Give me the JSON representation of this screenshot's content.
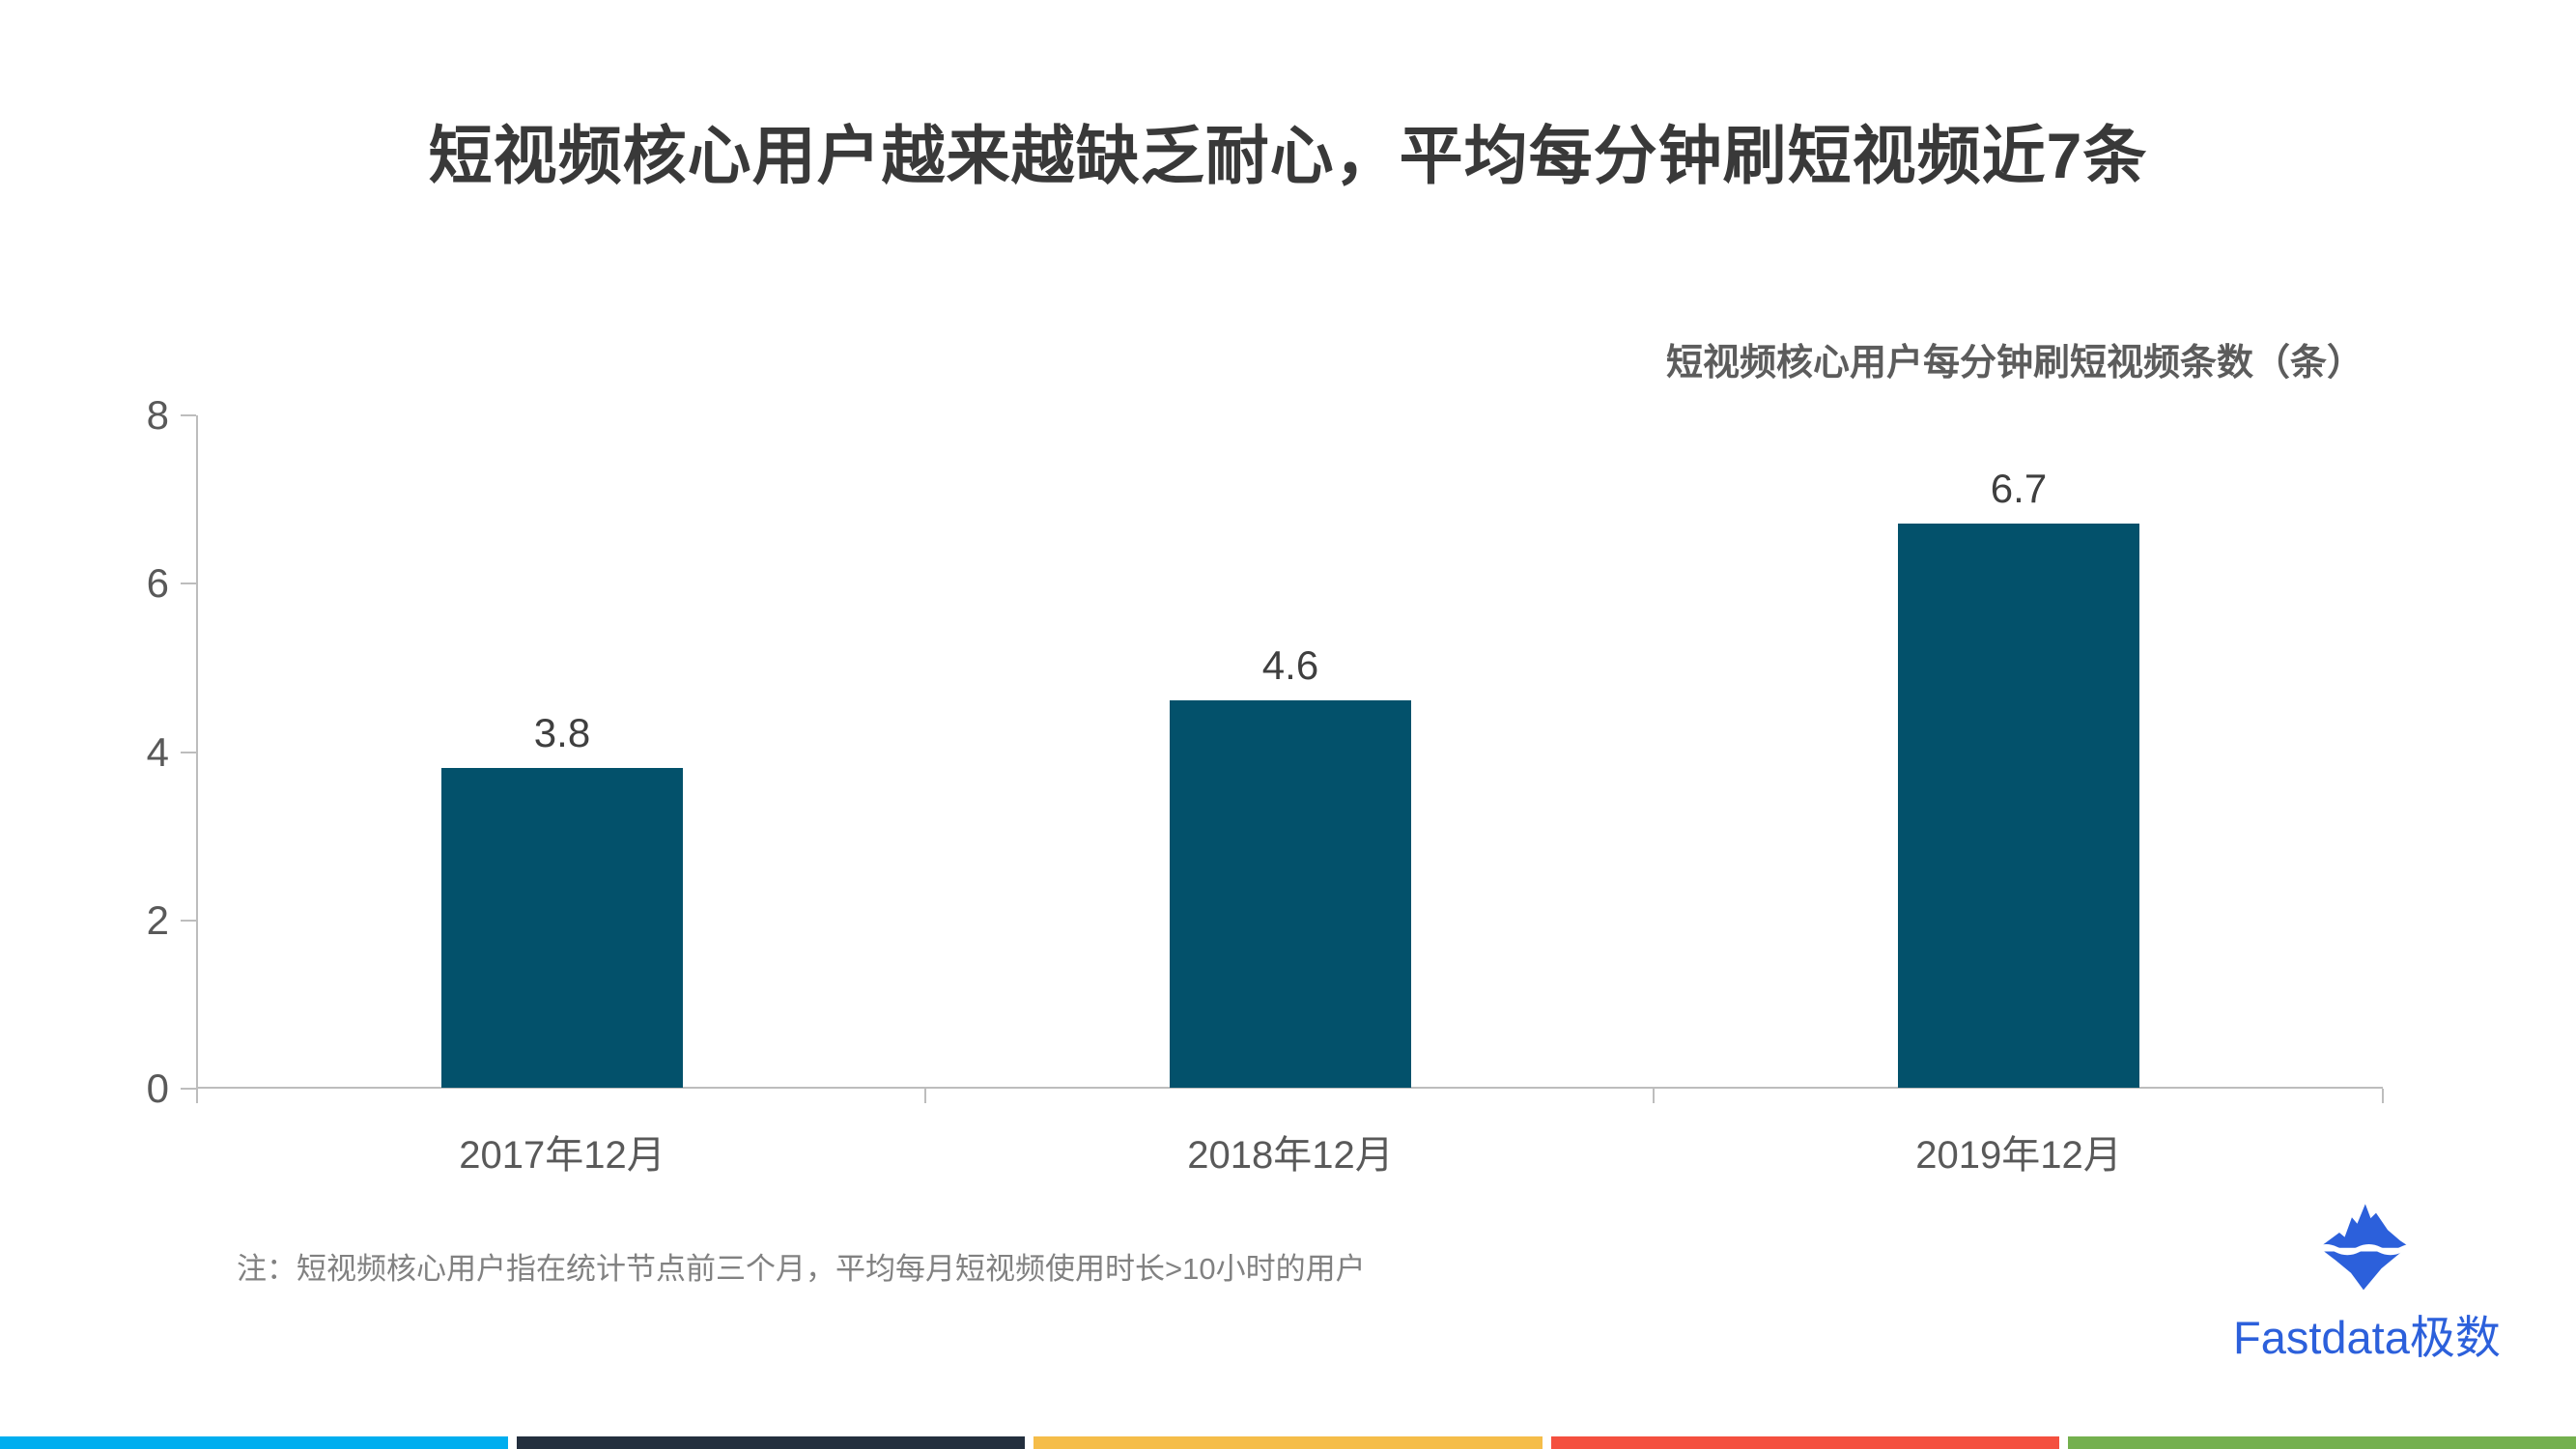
{
  "page": {
    "title": "短视频核心用户越来越缺乏耐心，平均每分钟刷短视频近7条",
    "note": "注：短视频核心用户指在统计节点前三个月，平均每月短视频使用时长>10小时的用户",
    "brand": {
      "name": "Fastdata极数",
      "icon": "iceberg-icon",
      "color": "#2c60db"
    },
    "footer_stripe_colors": [
      "#00aeef",
      "#232f3e",
      "#f5bd49",
      "#f4503f",
      "#74b04e"
    ]
  },
  "chart_data": {
    "type": "bar",
    "title": "短视频核心用户每分钟刷短视频条数（条）",
    "categories": [
      "2017年12月",
      "2018年12月",
      "2019年12月"
    ],
    "values": [
      3.8,
      4.6,
      6.7
    ],
    "xlabel": "",
    "ylabel": "",
    "ylim": [
      0,
      8
    ],
    "yticks": [
      0,
      2,
      4,
      6,
      8
    ],
    "grid": false,
    "data_labels": true,
    "bar_color": "#03516b",
    "axis_color": "#bdbdbd",
    "legend_position": "top-right"
  }
}
